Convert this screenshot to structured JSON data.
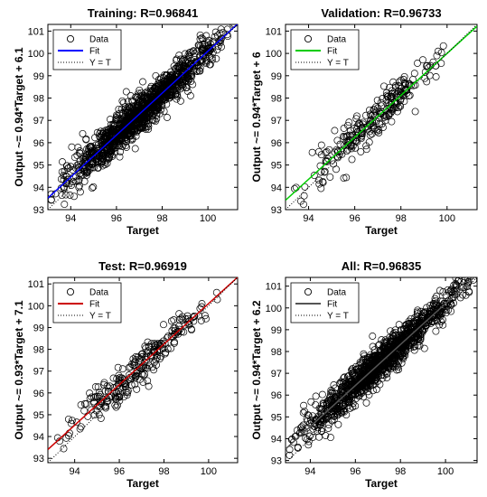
{
  "chart_data": [
    {
      "type": "scatter",
      "title": "Training: R=0.96841",
      "xlabel": "Target",
      "ylabel": "Output ~= 0.94*Target + 6.1",
      "xlim": [
        93,
        101.3
      ],
      "ylim": [
        93,
        101.3
      ],
      "xticks": [
        94,
        96,
        98,
        100
      ],
      "yticks": [
        93,
        94,
        95,
        96,
        97,
        98,
        99,
        100,
        101
      ],
      "grid": false,
      "legend_position": "top-left",
      "fit": {
        "slope": 0.94,
        "intercept": 6.1,
        "color": "#0000ff"
      },
      "series": [
        {
          "name": "Data",
          "marker": "open-circle",
          "color": "#000000",
          "density": "dense",
          "x_range": [
            93.1,
            101.2
          ],
          "spread": 0.5
        },
        {
          "name": "Fit",
          "style": "solid",
          "color": "#0000ff"
        },
        {
          "name": "Y = T",
          "style": "dotted",
          "color": "#000000"
        }
      ]
    },
    {
      "type": "scatter",
      "title": "Validation: R=0.96733",
      "xlabel": "Target",
      "ylabel": "Output ~= 0.94*Target + 6",
      "xlim": [
        93,
        101.3
      ],
      "ylim": [
        93,
        101.3
      ],
      "xticks": [
        94,
        96,
        98,
        100
      ],
      "yticks": [
        93,
        94,
        95,
        96,
        97,
        98,
        99,
        100,
        101
      ],
      "grid": false,
      "legend_position": "top-left",
      "fit": {
        "slope": 0.94,
        "intercept": 6.0,
        "color": "#00cc00"
      },
      "series": [
        {
          "name": "Data",
          "marker": "open-circle",
          "color": "#000000",
          "density": "sparse",
          "x_range": [
            93.3,
            100.4
          ],
          "spread": 0.5
        },
        {
          "name": "Fit",
          "style": "solid",
          "color": "#00cc00"
        },
        {
          "name": "Y = T",
          "style": "dotted",
          "color": "#000000"
        }
      ]
    },
    {
      "type": "scatter",
      "title": "Test: R=0.96919",
      "xlabel": "Target",
      "ylabel": "Output ~= 0.93*Target + 7.1",
      "xlim": [
        92.8,
        101.3
      ],
      "ylim": [
        92.8,
        101.3
      ],
      "xticks": [
        94,
        96,
        98,
        100
      ],
      "yticks": [
        93,
        94,
        95,
        96,
        97,
        98,
        99,
        100,
        101
      ],
      "grid": false,
      "legend_position": "top-left",
      "fit": {
        "slope": 0.93,
        "intercept": 7.1,
        "color": "#cc0000"
      },
      "series": [
        {
          "name": "Data",
          "marker": "open-circle",
          "color": "#000000",
          "density": "sparse",
          "x_range": [
            93.0,
            100.8
          ],
          "spread": 0.5
        },
        {
          "name": "Fit",
          "style": "solid",
          "color": "#cc0000"
        },
        {
          "name": "Y = T",
          "style": "dotted",
          "color": "#000000"
        }
      ]
    },
    {
      "type": "scatter",
      "title": "All: R=0.96835",
      "xlabel": "Target",
      "ylabel": "Output ~= 0.94*Target + 6.2",
      "xlim": [
        92.9,
        101.4
      ],
      "ylim": [
        92.9,
        101.4
      ],
      "xticks": [
        94,
        96,
        98,
        100
      ],
      "yticks": [
        93,
        94,
        95,
        96,
        97,
        98,
        99,
        100,
        101
      ],
      "grid": false,
      "legend_position": "top-left",
      "fit": {
        "slope": 0.94,
        "intercept": 6.2,
        "color": "#555555"
      },
      "series": [
        {
          "name": "Data",
          "marker": "open-circle",
          "color": "#000000",
          "density": "dense",
          "x_range": [
            93.0,
            101.3
          ],
          "spread": 0.5
        },
        {
          "name": "Fit",
          "style": "solid",
          "color": "#555555"
        },
        {
          "name": "Y = T",
          "style": "dotted",
          "color": "#000000"
        }
      ]
    }
  ]
}
